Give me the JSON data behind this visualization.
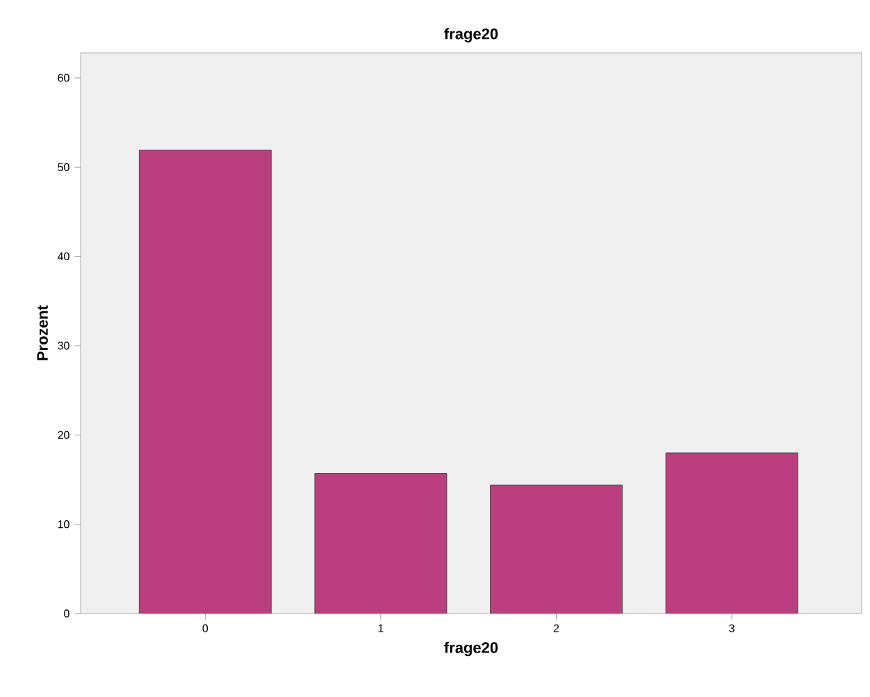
{
  "chart_data": {
    "type": "bar",
    "title": "frage20",
    "xlabel": "frage20",
    "ylabel": "Prozent",
    "categories": [
      "0",
      "1",
      "2",
      "3"
    ],
    "values": [
      51.9,
      15.7,
      14.4,
      18.0
    ],
    "color": "#bb3f7f",
    "ylim": [
      0,
      62.8
    ],
    "yticks": [
      0,
      10,
      20,
      30,
      40,
      50,
      60
    ],
    "grid": false
  }
}
